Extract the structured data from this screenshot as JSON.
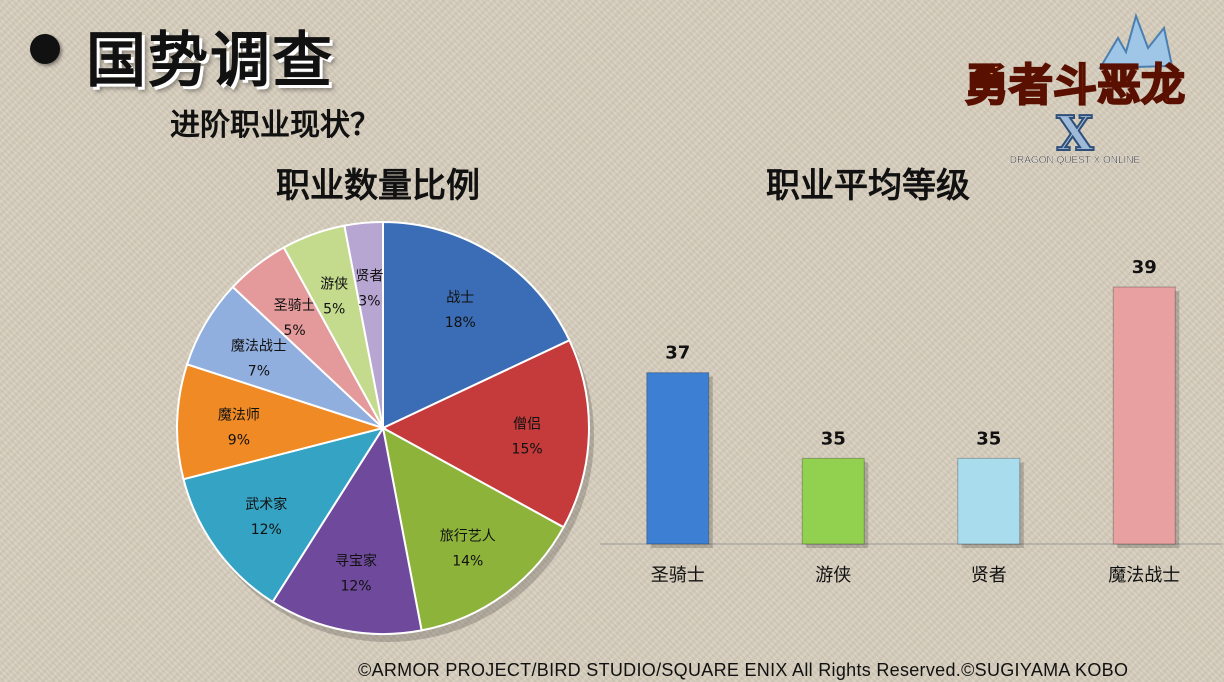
{
  "slide": {
    "title": "国势调查",
    "subtitle": "进阶职业现状？",
    "copyright": "©ARMOR PROJECT/BIRD STUDIO/SQUARE ENIX All Rights Reserved.©SUGIYAMA KOBO"
  },
  "logo": {
    "title": "勇者斗恶龙",
    "mark": "X",
    "tagline": "DRAGON QUEST X ONLINE"
  },
  "chart_data": [
    {
      "type": "pie",
      "title": "职业数量比例",
      "slices": [
        {
          "label": "战士",
          "value": 18,
          "display": "18%",
          "color": "#3a6db5"
        },
        {
          "label": "僧侣",
          "value": 15,
          "display": "15%",
          "color": "#c53a3a"
        },
        {
          "label": "旅行艺人",
          "value": 14,
          "display": "14%",
          "color": "#8db33b"
        },
        {
          "label": "寻宝家",
          "value": 12,
          "display": "12%",
          "color": "#6f4a9c"
        },
        {
          "label": "武术家",
          "value": 12,
          "display": "12%",
          "color": "#35a4c4"
        },
        {
          "label": "魔法师",
          "value": 9,
          "display": "9%",
          "color": "#f08a24"
        },
        {
          "label": "魔法战士",
          "value": 7,
          "display": "7%",
          "color": "#90aede"
        },
        {
          "label": "圣骑士",
          "value": 5,
          "display": "5%",
          "color": "#e49a9a"
        },
        {
          "label": "游侠",
          "value": 5,
          "display": "5%",
          "color": "#c4db8e"
        },
        {
          "label": "贤者",
          "value": 3,
          "display": "3%",
          "color": "#b7a5d2"
        }
      ]
    },
    {
      "type": "bar",
      "title": "职业平均等级",
      "categories": [
        "圣骑士",
        "游侠",
        "贤者",
        "魔法战士"
      ],
      "values": [
        37,
        35,
        35,
        39
      ],
      "colors": [
        "#3d7fd3",
        "#92d050",
        "#a9dcec",
        "#e8a0a0"
      ],
      "data_labels": true,
      "axis_visible": false,
      "grid": false
    }
  ]
}
